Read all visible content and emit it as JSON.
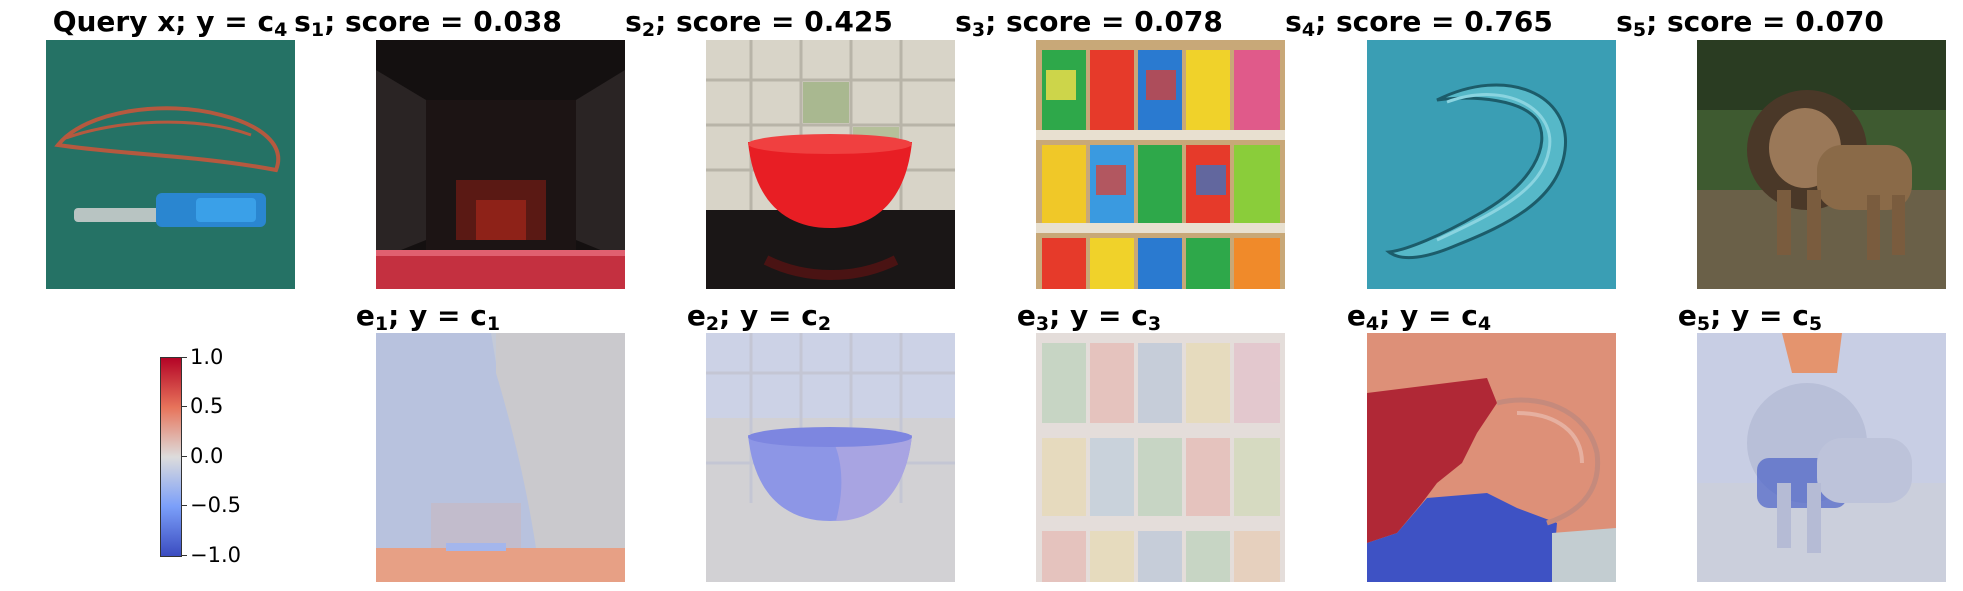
{
  "panels": [
    {
      "sym": "Query x",
      "y_sub": "4",
      "y_sym": "c",
      "kind": "query"
    },
    {
      "sym": "s",
      "sub": "1",
      "score": "0.038",
      "exp_y": "c",
      "exp_sub": "1"
    },
    {
      "sym": "s",
      "sub": "2",
      "score": "0.425",
      "exp_y": "c",
      "exp_sub": "2"
    },
    {
      "sym": "s",
      "sub": "3",
      "score": "0.078",
      "exp_y": "c",
      "exp_sub": "3"
    },
    {
      "sym": "s",
      "sub": "4",
      "score": "0.765",
      "exp_y": "c",
      "exp_sub": "4"
    },
    {
      "sym": "s",
      "sub": "5",
      "score": "0.070",
      "exp_y": "c",
      "exp_sub": "5"
    }
  ],
  "labels": {
    "y_eq": "; y = ",
    "score_eq": "; score = ",
    "exp_sym": "e"
  },
  "colorbar": {
    "colormap": "coolwarm",
    "ticks": [
      "1.0",
      "0.5",
      "0.0",
      "−0.5",
      "−1.0"
    ],
    "range": [
      -1.0,
      1.0
    ]
  },
  "colors": {
    "warm": "#b40426",
    "neutral": "#dddcdc",
    "cool": "#3b4cc0"
  }
}
